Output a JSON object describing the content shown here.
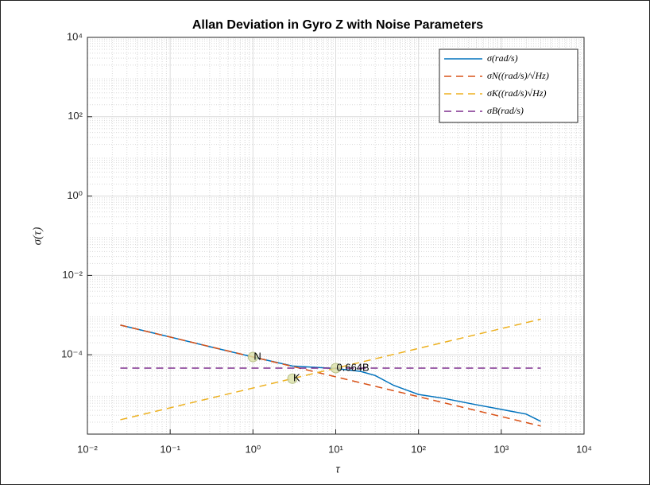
{
  "chart_data": {
    "type": "line",
    "title": "Allan Deviation in Gyro Z with Noise Parameters",
    "xlabel": "τ",
    "ylabel": "σ(τ)",
    "xscale": "log",
    "yscale": "log",
    "grid": true,
    "minor_grid": true,
    "legend": "upper right",
    "xlim": [
      0.01,
      10000
    ],
    "ylim": [
      1e-06,
      10000
    ],
    "xticks": [
      {
        "value": 0.01,
        "label": "10⁻²"
      },
      {
        "value": 0.1,
        "label": "10⁻¹"
      },
      {
        "value": 1,
        "label": "10⁰"
      },
      {
        "value": 10,
        "label": "10¹"
      },
      {
        "value": 100,
        "label": "10²"
      },
      {
        "value": 1000,
        "label": "10³"
      },
      {
        "value": 10000,
        "label": "10⁴"
      }
    ],
    "yticks": [
      {
        "value": 0.0001,
        "label": "10⁻⁴"
      },
      {
        "value": 0.01,
        "label": "10⁻²"
      },
      {
        "value": 1,
        "label": "10⁰"
      },
      {
        "value": 100,
        "label": "10²"
      },
      {
        "value": 10000,
        "label": "10⁴"
      }
    ],
    "series": [
      {
        "name": "σ(rad/s)",
        "color": "#0072bd",
        "style": "solid",
        "x": [
          0.025,
          0.1,
          0.3,
          1,
          3,
          10,
          20,
          30,
          50,
          100,
          200,
          500,
          1000,
          2000,
          3000
        ],
        "values": [
          0.00056,
          0.00028,
          0.00016,
          8.8e-05,
          5.2e-05,
          4.5e-05,
          3.8e-05,
          3e-05,
          1.7e-05,
          1e-05,
          8e-06,
          5.5e-06,
          4.2e-06,
          3.2e-06,
          2.1e-06
        ]
      },
      {
        "name": "σN((rad/s)/√Hz)",
        "color": "#d95319",
        "style": "dashed",
        "x": [
          0.025,
          3000
        ],
        "values": [
          0.00056,
          1.6e-06
        ]
      },
      {
        "name": "σK((rad/s)√Hz)",
        "color": "#edb120",
        "style": "dashed",
        "x": [
          0.025,
          3000
        ],
        "values": [
          2.3e-06,
          0.00079
        ]
      },
      {
        "name": "σB(rad/s)",
        "color": "#7e2f8e",
        "style": "dashed",
        "x": [
          0.025,
          3000
        ],
        "values": [
          4.6e-05,
          4.6e-05
        ]
      }
    ],
    "annotations": [
      {
        "text": "N",
        "x": 1,
        "y": 8.8e-05
      },
      {
        "text": "K",
        "x": 3,
        "y": 2.5e-05
      },
      {
        "text": "0.664B",
        "x": 10,
        "y": 4.6e-05
      }
    ]
  }
}
